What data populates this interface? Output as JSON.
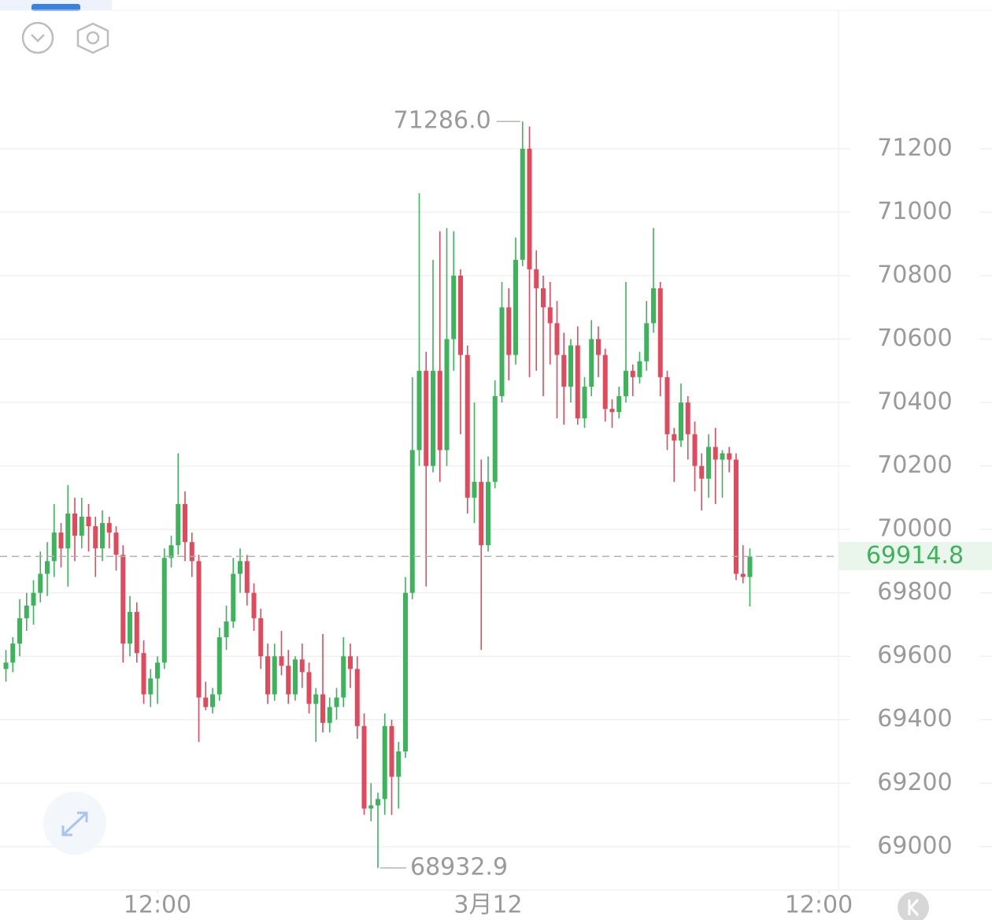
{
  "chart_data": {
    "type": "candlestick",
    "open": [
      69560,
      69580,
      69640,
      69720,
      69760,
      69800,
      69860,
      69900,
      69990,
      69940,
      70050,
      69980,
      70040,
      70010,
      69940,
      70020,
      69990,
      69920,
      69640,
      69740,
      69610,
      69480,
      69530,
      69580,
      69910,
      69950,
      70080,
      69960,
      69900,
      69470,
      69440,
      69480,
      69660,
      69710,
      69860,
      69900,
      69800,
      69720,
      69600,
      69480,
      69600,
      69570,
      69480,
      69590,
      69550,
      69450,
      69480,
      69390,
      69440,
      69470,
      69600,
      69560,
      69380,
      69120,
      69130,
      69150,
      69380,
      69220,
      69300,
      69800,
      70250,
      70500,
      70200,
      70500,
      70250,
      70600,
      70800,
      70550,
      70100,
      70150,
      69950,
      70150,
      70420,
      70700,
      70550,
      70850,
      71200,
      70820,
      70760,
      70700,
      70650,
      70550,
      70450,
      70580,
      70350,
      70450,
      70600,
      70550,
      70380,
      70370,
      70420,
      70500,
      70480,
      70530,
      70650,
      70760,
      70480,
      70300,
      70280,
      70400,
      70300,
      70200,
      70160,
      70260,
      70220,
      70240,
      70220,
      69860,
      69850
    ],
    "high": [
      69620,
      69660,
      69780,
      69800,
      69840,
      69930,
      69960,
      70080,
      70020,
      70140,
      70100,
      70100,
      70080,
      70040,
      70060,
      70040,
      70010,
      69950,
      69790,
      69770,
      69650,
      69560,
      69600,
      69940,
      69980,
      70240,
      70120,
      69990,
      69920,
      69520,
      69500,
      69690,
      69760,
      69910,
      69940,
      69920,
      69830,
      69750,
      69640,
      69640,
      69680,
      69620,
      69600,
      69640,
      69580,
      69500,
      69670,
      69470,
      69500,
      69660,
      69640,
      69600,
      69420,
      69200,
      69170,
      69420,
      69400,
      69330,
      69850,
      70480,
      71060,
      70560,
      70850,
      70940,
      70950,
      70940,
      70820,
      70580,
      70400,
      70220,
      70230,
      70470,
      70780,
      70760,
      70920,
      71286,
      71270,
      70880,
      70800,
      70780,
      70720,
      70620,
      70600,
      70640,
      70480,
      70660,
      70640,
      70570,
      70410,
      70450,
      70780,
      70520,
      70560,
      70720,
      70950,
      70780,
      70500,
      70320,
      70460,
      70420,
      70340,
      70240,
      70300,
      70320,
      70250,
      70260,
      70240,
      69950,
      69940
    ],
    "low": [
      69520,
      69550,
      69600,
      69680,
      69700,
      69770,
      69790,
      69850,
      69880,
      69820,
      69900,
      69940,
      69930,
      69850,
      69900,
      69940,
      69870,
      69580,
      69600,
      69580,
      69450,
      69440,
      69450,
      69560,
      69880,
      69920,
      69900,
      69850,
      69330,
      69430,
      69420,
      69460,
      69620,
      69690,
      69800,
      69760,
      69680,
      69560,
      69450,
      69460,
      69540,
      69450,
      69460,
      69500,
      69420,
      69330,
      69360,
      69360,
      69400,
      69440,
      69500,
      69340,
      69100,
      69080,
      68932.9,
      69100,
      69100,
      69120,
      69280,
      69780,
      70200,
      69820,
      70180,
      70150,
      70200,
      70500,
      70300,
      70050,
      70020,
      69620,
      69930,
      70130,
      70400,
      70470,
      70520,
      70830,
      70480,
      70500,
      70420,
      70520,
      70350,
      70330,
      70400,
      70330,
      70320,
      70420,
      70480,
      70340,
      70320,
      70350,
      70400,
      70420,
      70460,
      70500,
      70620,
      70420,
      70250,
      70150,
      70260,
      70220,
      70120,
      70060,
      70100,
      70080,
      70100,
      70180,
      69840,
      69830,
      69757
    ],
    "close": [
      69580,
      69640,
      69720,
      69760,
      69800,
      69860,
      69900,
      69990,
      69940,
      70050,
      69980,
      70040,
      70010,
      69940,
      70020,
      69990,
      69920,
      69640,
      69740,
      69610,
      69480,
      69530,
      69580,
      69910,
      69950,
      70080,
      69960,
      69900,
      69470,
      69440,
      69480,
      69660,
      69710,
      69860,
      69900,
      69800,
      69720,
      69600,
      69480,
      69600,
      69570,
      69480,
      69590,
      69550,
      69450,
      69480,
      69390,
      69440,
      69470,
      69600,
      69560,
      69380,
      69120,
      69130,
      69150,
      69380,
      69220,
      69300,
      69800,
      70250,
      70500,
      70200,
      70500,
      70250,
      70600,
      70800,
      70550,
      70100,
      70150,
      69950,
      70150,
      70420,
      70700,
      70550,
      70850,
      71200,
      70820,
      70760,
      70700,
      70650,
      70550,
      70450,
      70580,
      70350,
      70450,
      70600,
      70550,
      70380,
      70370,
      70420,
      70500,
      70480,
      70530,
      70650,
      70760,
      70480,
      70300,
      70280,
      70400,
      70300,
      70200,
      70160,
      70260,
      70220,
      70240,
      70220,
      69860,
      69850,
      69914.8
    ],
    "up_color": "#3db35b",
    "down_color": "#e04a5c",
    "ylim": [
      68863,
      71669
    ],
    "yticks": [
      69000,
      69200,
      69400,
      69600,
      69800,
      70000,
      70200,
      70400,
      70600,
      70800,
      71000,
      71200
    ],
    "xlim": [
      -0.86,
      120.86
    ],
    "xticks": [
      {
        "value": 22,
        "label": "12:00"
      },
      {
        "value": 70,
        "label": "3月12"
      },
      {
        "value": 118,
        "label": "12:00"
      }
    ],
    "grid": true,
    "high_label": {
      "value": 71286,
      "label": "71286.0"
    },
    "low_label": 68932.9,
    "last_price": 69914.8
  }
}
